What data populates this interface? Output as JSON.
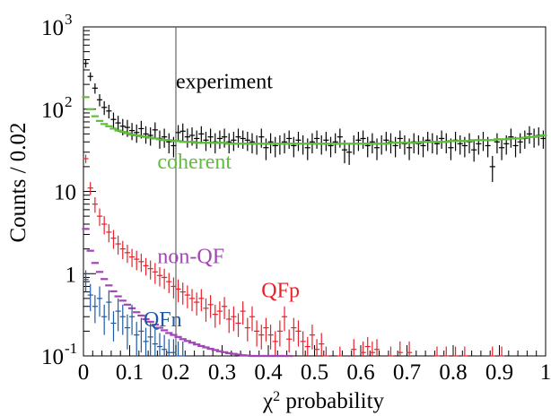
{
  "chart_data": {
    "type": "scatter",
    "x_axis": {
      "label_base": "χ",
      "label_sup": "2",
      "label_rest": " probability",
      "range": [
        0,
        1
      ],
      "ticks": [
        0,
        0.1,
        0.2,
        0.3,
        0.4,
        0.5,
        0.6,
        0.7,
        0.8,
        0.9,
        1
      ],
      "tick_labels": [
        "0",
        "0.1",
        "0.2",
        "0.3",
        "0.4",
        "0.5",
        "0.6",
        "0.7",
        "0.8",
        "0.9",
        "1"
      ]
    },
    "y_axis": {
      "label": "Counts / 0.02",
      "scale": "log",
      "range": [
        0.1,
        1000
      ],
      "tick_labels": [
        {
          "value": 0.1,
          "base": "10",
          "sup": "-1"
        },
        {
          "value": 1,
          "base": "1",
          "sup": ""
        },
        {
          "value": 10,
          "base": "10",
          "sup": ""
        },
        {
          "value": 100,
          "base": "10",
          "sup": "2"
        },
        {
          "value": 1000,
          "base": "10",
          "sup": "3"
        }
      ]
    },
    "reference_line_x": 0.2,
    "series": [
      {
        "name": "experiment",
        "color": "#000000",
        "x": [
          0.005,
          0.015,
          0.025,
          0.035,
          0.045,
          0.055,
          0.065,
          0.075,
          0.085,
          0.095,
          0.105,
          0.115,
          0.125,
          0.135,
          0.145,
          0.155,
          0.165,
          0.175,
          0.185,
          0.195,
          0.205,
          0.215,
          0.225,
          0.235,
          0.245,
          0.255,
          0.265,
          0.275,
          0.285,
          0.295,
          0.305,
          0.315,
          0.325,
          0.335,
          0.345,
          0.355,
          0.365,
          0.375,
          0.385,
          0.395,
          0.405,
          0.415,
          0.425,
          0.435,
          0.445,
          0.455,
          0.465,
          0.475,
          0.485,
          0.495,
          0.505,
          0.515,
          0.525,
          0.535,
          0.545,
          0.555,
          0.565,
          0.575,
          0.585,
          0.595,
          0.605,
          0.615,
          0.625,
          0.635,
          0.645,
          0.655,
          0.665,
          0.675,
          0.685,
          0.695,
          0.705,
          0.715,
          0.725,
          0.735,
          0.745,
          0.755,
          0.765,
          0.775,
          0.785,
          0.795,
          0.805,
          0.815,
          0.825,
          0.835,
          0.845,
          0.855,
          0.865,
          0.875,
          0.885,
          0.895,
          0.905,
          0.915,
          0.925,
          0.935,
          0.945,
          0.955,
          0.965,
          0.975,
          0.985,
          0.995
        ],
        "y": [
          360,
          250,
          180,
          130,
          105,
          95,
          75,
          68,
          62,
          60,
          55,
          52,
          58,
          50,
          48,
          56,
          44,
          46,
          40,
          36,
          52,
          54,
          46,
          48,
          44,
          50,
          42,
          46,
          40,
          44,
          46,
          40,
          42,
          46,
          44,
          42,
          40,
          38,
          46,
          34,
          40,
          36,
          38,
          40,
          44,
          36,
          42,
          38,
          34,
          40,
          44,
          38,
          42,
          36,
          40,
          46,
          32,
          30,
          38,
          42,
          44,
          36,
          40,
          34,
          38,
          42,
          40,
          36,
          44,
          38,
          34,
          40,
          38,
          36,
          42,
          40,
          38,
          44,
          40,
          34,
          42,
          38,
          36,
          40,
          32,
          38,
          42,
          36,
          20,
          40,
          34,
          38,
          46,
          36,
          40,
          44,
          50,
          46,
          48,
          44
        ],
        "yerr": [
          40,
          30,
          26,
          22,
          20,
          18,
          16,
          15,
          14,
          14,
          13,
          13,
          14,
          12,
          12,
          13,
          11,
          12,
          11,
          10,
          12,
          13,
          12,
          12,
          11,
          12,
          11,
          12,
          11,
          11,
          12,
          11,
          11,
          12,
          11,
          11,
          11,
          10,
          12,
          10,
          11,
          10,
          10,
          11,
          11,
          10,
          11,
          10,
          10,
          11,
          11,
          10,
          11,
          10,
          11,
          12,
          10,
          9,
          10,
          11,
          11,
          10,
          11,
          10,
          10,
          11,
          11,
          10,
          11,
          10,
          10,
          11,
          10,
          10,
          11,
          11,
          10,
          11,
          11,
          10,
          11,
          10,
          10,
          11,
          9,
          10,
          11,
          10,
          7,
          11,
          10,
          10,
          12,
          10,
          11,
          11,
          12,
          12,
          12,
          11
        ]
      },
      {
        "name": "coherent",
        "color": "#5fbe3a",
        "x": [
          0.005,
          0.015,
          0.025,
          0.035,
          0.045,
          0.055,
          0.065,
          0.075,
          0.085,
          0.095,
          0.105,
          0.115,
          0.125,
          0.135,
          0.145,
          0.155,
          0.165,
          0.175,
          0.185,
          0.195,
          0.205,
          0.215,
          0.225,
          0.235,
          0.245,
          0.255,
          0.265,
          0.275,
          0.285,
          0.295,
          0.305,
          0.315,
          0.325,
          0.335,
          0.345,
          0.355,
          0.365,
          0.375,
          0.385,
          0.395,
          0.405,
          0.415,
          0.425,
          0.435,
          0.445,
          0.455,
          0.465,
          0.475,
          0.485,
          0.495,
          0.505,
          0.515,
          0.525,
          0.535,
          0.545,
          0.555,
          0.565,
          0.575,
          0.585,
          0.595,
          0.605,
          0.615,
          0.625,
          0.635,
          0.645,
          0.655,
          0.665,
          0.675,
          0.685,
          0.695,
          0.705,
          0.715,
          0.725,
          0.735,
          0.745,
          0.755,
          0.765,
          0.775,
          0.785,
          0.795,
          0.805,
          0.815,
          0.825,
          0.835,
          0.845,
          0.855,
          0.865,
          0.875,
          0.885,
          0.895,
          0.905,
          0.915,
          0.925,
          0.935,
          0.945,
          0.955,
          0.965,
          0.975,
          0.985,
          0.995
        ],
        "y": [
          140,
          100,
          82,
          72,
          66,
          62,
          58,
          55,
          53,
          51,
          49,
          48,
          47,
          46,
          45,
          44,
          43,
          42,
          42,
          41,
          41,
          40,
          40,
          40,
          39,
          39,
          39,
          39,
          39,
          39,
          39,
          38,
          38,
          38,
          38,
          38,
          38,
          38,
          38,
          38,
          38,
          38,
          38,
          38,
          38,
          38,
          38,
          38,
          38,
          38,
          38,
          38,
          38,
          38,
          38,
          38,
          38,
          38,
          38,
          38,
          38,
          38,
          38,
          38,
          38,
          38,
          39,
          39,
          39,
          39,
          39,
          39,
          39,
          40,
          40,
          40,
          40,
          40,
          40,
          41,
          41,
          41,
          41,
          41,
          42,
          42,
          42,
          42,
          42,
          43,
          43,
          43,
          44,
          44,
          44,
          45,
          46,
          46,
          47,
          48
        ]
      },
      {
        "name": "QFp",
        "color": "#e8202a",
        "x": [
          0.005,
          0.015,
          0.025,
          0.035,
          0.045,
          0.055,
          0.065,
          0.075,
          0.085,
          0.095,
          0.105,
          0.115,
          0.125,
          0.135,
          0.145,
          0.155,
          0.165,
          0.175,
          0.185,
          0.195,
          0.205,
          0.215,
          0.225,
          0.235,
          0.245,
          0.255,
          0.265,
          0.275,
          0.285,
          0.295,
          0.305,
          0.315,
          0.325,
          0.335,
          0.345,
          0.355,
          0.365,
          0.375,
          0.385,
          0.395,
          0.405,
          0.415,
          0.425,
          0.435,
          0.445,
          0.455,
          0.465,
          0.475,
          0.485,
          0.495,
          0.505,
          0.515,
          0.525,
          0.555,
          0.585,
          0.605,
          0.615,
          0.625,
          0.635,
          0.665,
          0.685,
          0.705,
          0.765,
          0.785,
          0.805,
          0.825,
          0.885,
          0.905
        ],
        "y": [
          25,
          11,
          7,
          5,
          4,
          3.2,
          2.7,
          2.3,
          2,
          1.8,
          1.6,
          1.5,
          1.4,
          1.25,
          1.15,
          1.05,
          0.95,
          0.9,
          0.8,
          0.7,
          0.65,
          0.6,
          0.55,
          0.5,
          0.45,
          0.5,
          0.38,
          0.42,
          0.32,
          0.35,
          0.4,
          0.28,
          0.3,
          0.25,
          0.35,
          0.22,
          0.3,
          0.2,
          0.18,
          0.22,
          0.18,
          0.15,
          0.2,
          0.3,
          0.16,
          0.22,
          0.2,
          0.15,
          0.13,
          0.18,
          0.12,
          0.14,
          0.1,
          0.1,
          0.12,
          0.11,
          0.13,
          0.11,
          0.12,
          0.1,
          0.11,
          0.11,
          0.1,
          0.1,
          0.1,
          0.1,
          0.1,
          0.1
        ],
        "yerr": [
          3,
          2,
          1.5,
          1.2,
          1,
          0.8,
          0.7,
          0.6,
          0.5,
          0.45,
          0.4,
          0.4,
          0.35,
          0.3,
          0.3,
          0.3,
          0.25,
          0.25,
          0.22,
          0.2,
          0.2,
          0.18,
          0.17,
          0.15,
          0.14,
          0.15,
          0.12,
          0.13,
          0.1,
          0.11,
          0.12,
          0.09,
          0.1,
          0.08,
          0.11,
          0.07,
          0.1,
          0.07,
          0.06,
          0.07,
          0.06,
          0.05,
          0.07,
          0.1,
          0.05,
          0.07,
          0.07,
          0.05,
          0.04,
          0.06,
          0.04,
          0.05,
          0.03,
          0.03,
          0.04,
          0.04,
          0.04,
          0.04,
          0.04,
          0.03,
          0.04,
          0.04,
          0.03,
          0.03,
          0.03,
          0.03,
          0.03,
          0.03
        ]
      },
      {
        "name": "non-QF",
        "color": "#a245b5",
        "x": [
          0.005,
          0.015,
          0.025,
          0.035,
          0.045,
          0.055,
          0.065,
          0.075,
          0.085,
          0.095,
          0.105,
          0.115,
          0.125,
          0.135,
          0.145,
          0.155,
          0.165,
          0.175,
          0.185,
          0.195,
          0.205,
          0.215,
          0.225,
          0.235,
          0.245,
          0.255,
          0.265,
          0.275,
          0.285,
          0.295,
          0.305,
          0.315,
          0.325,
          0.335,
          0.345,
          0.355,
          0.365,
          0.375,
          0.385,
          0.395,
          0.405,
          0.415,
          0.425,
          0.435,
          0.445
        ],
        "y": [
          3.5,
          1.9,
          1.35,
          1.05,
          0.86,
          0.72,
          0.61,
          0.53,
          0.47,
          0.42,
          0.38,
          0.34,
          0.31,
          0.28,
          0.26,
          0.24,
          0.22,
          0.205,
          0.19,
          0.18,
          0.17,
          0.16,
          0.152,
          0.145,
          0.138,
          0.132,
          0.127,
          0.122,
          0.118,
          0.114,
          0.111,
          0.108,
          0.106,
          0.104,
          0.102,
          0.101,
          0.1,
          0.1,
          0.1,
          0.1,
          0.1,
          0.1,
          0.1,
          0.1,
          0.1
        ]
      },
      {
        "name": "QFn",
        "color": "#1c5aa8",
        "x": [
          0.005,
          0.015,
          0.025,
          0.035,
          0.045,
          0.055,
          0.065,
          0.075,
          0.085,
          0.095,
          0.105,
          0.115,
          0.125,
          0.135,
          0.145,
          0.155,
          0.165,
          0.175,
          0.185,
          0.195,
          0.205,
          0.215
        ],
        "y": [
          0.85,
          0.55,
          0.4,
          0.5,
          0.3,
          0.45,
          0.25,
          0.35,
          0.3,
          0.22,
          0.3,
          0.18,
          0.2,
          0.15,
          0.17,
          0.14,
          0.13,
          0.12,
          0.11,
          0.11,
          0.1,
          0.1
        ],
        "yerr": [
          0.25,
          0.2,
          0.15,
          0.2,
          0.12,
          0.18,
          0.1,
          0.15,
          0.12,
          0.1,
          0.12,
          0.08,
          0.09,
          0.07,
          0.08,
          0.07,
          0.06,
          0.06,
          0.05,
          0.05,
          0.05,
          0.05
        ]
      }
    ],
    "labels": [
      {
        "text": "experiment",
        "color": "#000000",
        "x": 0.2,
        "y": 180
      },
      {
        "text": "coherent",
        "color": "#5fbe3a",
        "x": 0.16,
        "y": 19
      },
      {
        "text": "non-QF",
        "color": "#a245b5",
        "x": 0.16,
        "y": 1.35
      },
      {
        "text": "QFp",
        "color": "#e8202a",
        "x": 0.385,
        "y": 0.52
      },
      {
        "text": "QFn",
        "color": "#1c5aa8",
        "x": 0.13,
        "y": 0.23
      }
    ]
  }
}
